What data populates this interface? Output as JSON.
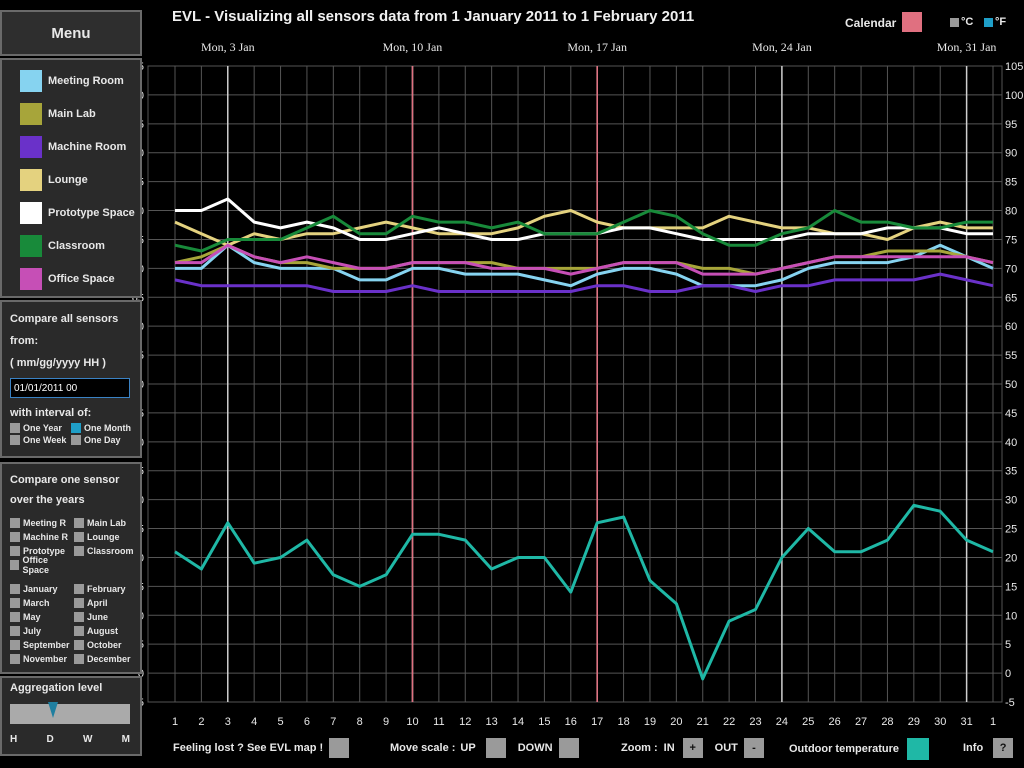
{
  "menu": {
    "title": "Menu"
  },
  "rooms": [
    {
      "label": "Meeting Room",
      "color": "#86d3f0"
    },
    {
      "label": "Main Lab",
      "color": "#a7a53a"
    },
    {
      "label": "Machine Room",
      "color": "#6a31c9"
    },
    {
      "label": "Lounge",
      "color": "#e4d27f"
    },
    {
      "label": "Prototype Space",
      "color": "#ffffff"
    },
    {
      "label": "Classroom",
      "color": "#188a3a"
    },
    {
      "label": "Office Space",
      "color": "#c64fb6"
    }
  ],
  "compare_all": {
    "line1": "Compare all sensors",
    "line2": "from:",
    "line3": "( mm/gg/yyyy HH )",
    "date_value": "01/01/2011 00",
    "interval_label": "with interval of:",
    "options": [
      "One Year",
      "One Month",
      "One Week",
      "One Day"
    ],
    "selected": "One Month"
  },
  "compare_one": {
    "line1": "Compare one sensor",
    "line2": "over the years",
    "sensors": [
      "Meeting R",
      "Main Lab",
      "Machine R",
      "Lounge",
      "Prototype",
      "Classroom",
      "Office Space"
    ],
    "months": [
      "January",
      "February",
      "March",
      "April",
      "May",
      "June",
      "July",
      "August",
      "September",
      "October",
      "November",
      "December"
    ]
  },
  "aggregation": {
    "title": "Aggregation level",
    "ticks": [
      "H",
      "D",
      "W",
      "M"
    ],
    "selected": "D"
  },
  "header": {
    "title": "EVL - Visualizing all sensors data from 1 January 2011 to 1 February 2011",
    "calendar_label": "Calendar",
    "calendar_color": "#e07080",
    "unit_c": "°C",
    "unit_f": "°F",
    "selected_unit": "°F"
  },
  "bottom": {
    "map_label": "Feeling lost ? See EVL map !",
    "move_label": "Move scale :",
    "up_label": "UP",
    "down_label": "DOWN",
    "zoom_label": "Zoom :",
    "in_label": "IN",
    "in_btn": "+",
    "out_label": "OUT",
    "out_btn": "-",
    "outdoor_label": "Outdoor temperature",
    "outdoor_color": "#1fb8a6",
    "info_label": "Info",
    "info_btn": "?"
  },
  "chart_data": {
    "type": "line",
    "ylim": [
      -5,
      105
    ],
    "y_ticks": [
      -5,
      0,
      5,
      10,
      15,
      20,
      25,
      30,
      35,
      40,
      45,
      50,
      55,
      60,
      65,
      70,
      75,
      80,
      85,
      90,
      95,
      100,
      105
    ],
    "x": [
      "1",
      "2",
      "3",
      "4",
      "5",
      "6",
      "7",
      "8",
      "9",
      "10",
      "11",
      "12",
      "13",
      "14",
      "15",
      "16",
      "17",
      "18",
      "19",
      "20",
      "21",
      "22",
      "23",
      "24",
      "25",
      "26",
      "27",
      "28",
      "29",
      "30",
      "31",
      "1"
    ],
    "week_labels": [
      {
        "label": "Mon, 3 Jan",
        "x_index": 2
      },
      {
        "label": "Mon, 10 Jan",
        "x_index": 9
      },
      {
        "label": "Mon, 17 Jan",
        "x_index": 16
      },
      {
        "label": "Mon, 24 Jan",
        "x_index": 23
      },
      {
        "label": "Mon, 31 Jan",
        "x_index": 30
      }
    ],
    "calendar_marker_indices": [
      9,
      16
    ],
    "series": [
      {
        "name": "Meeting Room",
        "color": "#86d3f0",
        "values": [
          70,
          70,
          74,
          71,
          70,
          70,
          70,
          68,
          68,
          70,
          70,
          69,
          69,
          69,
          68,
          67,
          69,
          70,
          70,
          69,
          67,
          67,
          67,
          68,
          70,
          71,
          71,
          71,
          72,
          74,
          72,
          70
        ]
      },
      {
        "name": "Main Lab",
        "color": "#a7a53a",
        "values": [
          71,
          72,
          74,
          72,
          71,
          71,
          70,
          70,
          70,
          71,
          71,
          71,
          71,
          70,
          70,
          70,
          70,
          71,
          71,
          71,
          70,
          70,
          69,
          70,
          71,
          72,
          72,
          73,
          73,
          73,
          72,
          71
        ]
      },
      {
        "name": "Machine Room",
        "color": "#6a31c9",
        "values": [
          68,
          67,
          67,
          67,
          67,
          67,
          66,
          66,
          66,
          67,
          66,
          66,
          66,
          66,
          66,
          66,
          67,
          67,
          66,
          66,
          67,
          67,
          66,
          67,
          67,
          68,
          68,
          68,
          68,
          69,
          68,
          67
        ]
      },
      {
        "name": "Lounge",
        "color": "#e4d27f",
        "values": [
          78,
          76,
          74,
          76,
          75,
          76,
          76,
          77,
          78,
          77,
          76,
          76,
          76,
          77,
          79,
          80,
          78,
          77,
          77,
          77,
          77,
          79,
          78,
          77,
          77,
          76,
          76,
          75,
          77,
          78,
          77,
          77
        ]
      },
      {
        "name": "Prototype Space",
        "color": "#ffffff",
        "values": [
          80,
          80,
          82,
          78,
          77,
          78,
          77,
          75,
          75,
          76,
          77,
          76,
          75,
          75,
          76,
          76,
          76,
          77,
          77,
          76,
          75,
          75,
          75,
          75,
          76,
          76,
          76,
          77,
          77,
          77,
          76,
          76
        ]
      },
      {
        "name": "Classroom",
        "color": "#188a3a",
        "values": [
          74,
          73,
          75,
          75,
          75,
          77,
          79,
          76,
          76,
          79,
          78,
          78,
          77,
          78,
          76,
          76,
          76,
          78,
          80,
          79,
          76,
          74,
          74,
          76,
          77,
          80,
          78,
          78,
          77,
          77,
          78,
          78
        ]
      },
      {
        "name": "Office Space",
        "color": "#c64fb6",
        "values": [
          71,
          71,
          74,
          72,
          71,
          72,
          71,
          70,
          70,
          71,
          71,
          71,
          70,
          70,
          70,
          69,
          70,
          71,
          71,
          71,
          69,
          69,
          69,
          70,
          71,
          72,
          72,
          72,
          72,
          72,
          72,
          71
        ]
      },
      {
        "name": "Outdoor temperature",
        "color": "#1fb8a6",
        "values": [
          21,
          18,
          26,
          19,
          20,
          23,
          17,
          15,
          17,
          24,
          24,
          23,
          18,
          20,
          20,
          14,
          26,
          27,
          16,
          12,
          -1,
          9,
          11,
          20,
          25,
          21,
          21,
          23,
          29,
          28,
          23,
          21
        ]
      }
    ],
    "grid": true
  }
}
